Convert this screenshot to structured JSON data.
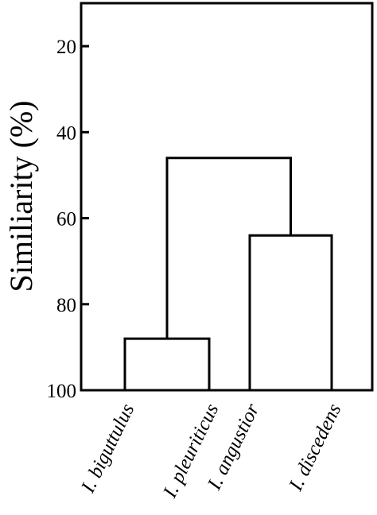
{
  "chart_data": {
    "type": "dendrogram",
    "title": "",
    "ylabel": "Similiarity (%)",
    "xlabel": "",
    "ylim": [
      10,
      100
    ],
    "y_inverted": true,
    "yticks": [
      20,
      40,
      60,
      80,
      100
    ],
    "grid": false,
    "leaves": [
      "I. biguttulus",
      "I. pleuriticus",
      "I. angustior",
      "I. discedens"
    ],
    "merges": [
      {
        "left": "I. biguttulus",
        "right": "I. pleuriticus",
        "similarity": 88
      },
      {
        "left": "I. angustior",
        "right": "I. discedens",
        "similarity": 64
      },
      {
        "left": "cluster-1",
        "right": "cluster-2",
        "similarity": 46
      }
    ]
  }
}
